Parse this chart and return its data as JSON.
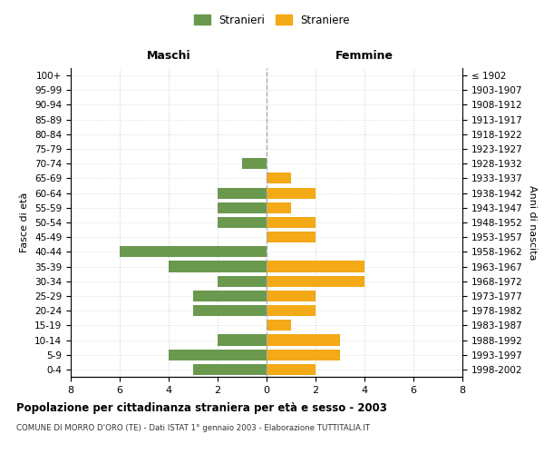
{
  "age_groups": [
    "100+",
    "95-99",
    "90-94",
    "85-89",
    "80-84",
    "75-79",
    "70-74",
    "65-69",
    "60-64",
    "55-59",
    "50-54",
    "45-49",
    "40-44",
    "35-39",
    "30-34",
    "25-29",
    "20-24",
    "15-19",
    "10-14",
    "5-9",
    "0-4"
  ],
  "anni_nascita": [
    "≤ 1902",
    "1903-1907",
    "1908-1912",
    "1913-1917",
    "1918-1922",
    "1923-1927",
    "1928-1932",
    "1933-1937",
    "1938-1942",
    "1943-1947",
    "1948-1952",
    "1953-1957",
    "1958-1962",
    "1963-1967",
    "1968-1972",
    "1973-1977",
    "1978-1982",
    "1983-1987",
    "1988-1992",
    "1993-1997",
    "1998-2002"
  ],
  "maschi": [
    0,
    0,
    0,
    0,
    0,
    0,
    1,
    0,
    2,
    2,
    2,
    0,
    6,
    4,
    2,
    3,
    3,
    0,
    2,
    4,
    3
  ],
  "femmine": [
    0,
    0,
    0,
    0,
    0,
    0,
    0,
    1,
    2,
    1,
    2,
    2,
    0,
    4,
    4,
    2,
    2,
    1,
    3,
    3,
    2
  ],
  "color_maschi": "#6a994e",
  "color_femmine": "#f4a916",
  "title": "Popolazione per cittadinanza straniera per età e sesso - 2003",
  "subtitle": "COMUNE DI MORRO D'ORO (TE) - Dati ISTAT 1° gennaio 2003 - Elaborazione TUTTITALIA.IT",
  "label_maschi": "Maschi",
  "label_femmine": "Femmine",
  "ylabel_left": "Fasce di età",
  "ylabel_right": "Anni di nascita",
  "legend_maschi": "Stranieri",
  "legend_femmine": "Straniere",
  "xlim": 8,
  "background_color": "#ffffff",
  "grid_color": "#cccccc"
}
